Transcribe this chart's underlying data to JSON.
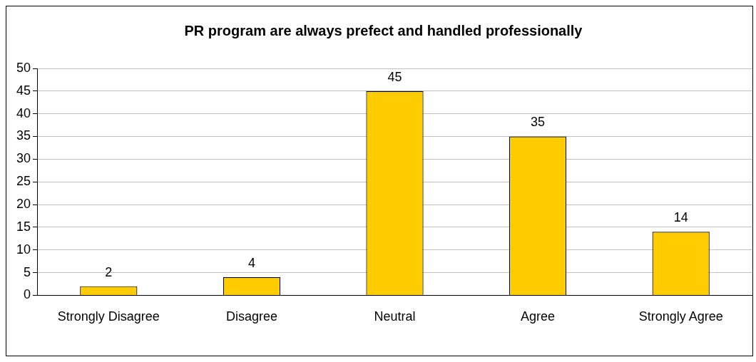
{
  "chart_data": {
    "type": "bar",
    "title": "PR program are always prefect and handled professionally",
    "categories": [
      "Strongly Disagree",
      "Disagree",
      "Neutral",
      "Agree",
      "Strongly Agree"
    ],
    "values": [
      2,
      4,
      45,
      35,
      14
    ],
    "color": "#ffcc00",
    "ylim": [
      0,
      50
    ],
    "yticks": [
      0,
      5,
      10,
      15,
      20,
      25,
      30,
      35,
      40,
      45,
      50
    ],
    "grid": "y",
    "data_labels": true
  }
}
